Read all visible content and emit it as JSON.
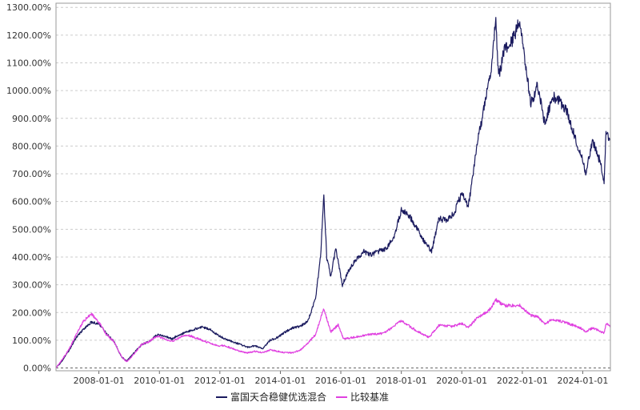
{
  "chart_data": {
    "type": "line",
    "title": "",
    "xlabel": "",
    "ylabel": "",
    "x_range": [
      "2006-08-01",
      "2024-11-30"
    ],
    "ylim": [
      -10,
      1315
    ],
    "y_unit": "%",
    "y_ticks": [
      0,
      100,
      200,
      300,
      400,
      500,
      600,
      700,
      800,
      900,
      1000,
      1100,
      1200,
      1300
    ],
    "y_tick_labels": [
      "0.00%",
      "100.00%",
      "200.00%",
      "300.00%",
      "400.00%",
      "500.00%",
      "600.00%",
      "700.00%",
      "800.00%",
      "900.00%",
      "1000.00%",
      "1100.00%",
      "1200.00%",
      "1300.00%"
    ],
    "x_ticks": [
      "2008-01-01",
      "2010-01-01",
      "2012-01-01",
      "2014-01-01",
      "2016-01-01",
      "2018-01-01",
      "2020-01-01",
      "2022-01-01",
      "2024-01-01"
    ],
    "grid": "horizontal dashed",
    "legend_position": "bottom-center",
    "series": [
      {
        "name": "富国天合稳健优选混合",
        "color": "#1a1a5e",
        "points": [
          [
            "2006-08-01",
            0
          ],
          [
            "2006-10-01",
            20
          ],
          [
            "2007-01-01",
            60
          ],
          [
            "2007-04-01",
            110
          ],
          [
            "2007-07-01",
            140
          ],
          [
            "2007-10-01",
            165
          ],
          [
            "2008-01-01",
            160
          ],
          [
            "2008-04-01",
            125
          ],
          [
            "2008-07-01",
            95
          ],
          [
            "2008-10-01",
            40
          ],
          [
            "2008-12-01",
            25
          ],
          [
            "2009-03-01",
            55
          ],
          [
            "2009-06-01",
            85
          ],
          [
            "2009-09-01",
            95
          ],
          [
            "2009-12-01",
            120
          ],
          [
            "2010-03-01",
            115
          ],
          [
            "2010-06-01",
            105
          ],
          [
            "2010-09-01",
            120
          ],
          [
            "2010-12-01",
            130
          ],
          [
            "2011-03-01",
            140
          ],
          [
            "2011-06-01",
            148
          ],
          [
            "2011-09-01",
            140
          ],
          [
            "2011-12-01",
            120
          ],
          [
            "2012-03-01",
            105
          ],
          [
            "2012-06-01",
            95
          ],
          [
            "2012-09-01",
            85
          ],
          [
            "2012-12-01",
            75
          ],
          [
            "2013-03-01",
            80
          ],
          [
            "2013-06-01",
            70
          ],
          [
            "2013-09-01",
            100
          ],
          [
            "2013-12-01",
            110
          ],
          [
            "2014-03-01",
            130
          ],
          [
            "2014-06-01",
            145
          ],
          [
            "2014-09-01",
            150
          ],
          [
            "2014-12-01",
            170
          ],
          [
            "2015-03-01",
            250
          ],
          [
            "2015-05-01",
            400
          ],
          [
            "2015-06-10",
            620
          ],
          [
            "2015-07-15",
            400
          ],
          [
            "2015-09-01",
            330
          ],
          [
            "2015-11-01",
            430
          ],
          [
            "2016-01-20",
            300
          ],
          [
            "2016-04-01",
            350
          ],
          [
            "2016-07-01",
            390
          ],
          [
            "2016-10-01",
            420
          ],
          [
            "2017-01-01",
            410
          ],
          [
            "2017-04-01",
            420
          ],
          [
            "2017-07-01",
            430
          ],
          [
            "2017-10-01",
            470
          ],
          [
            "2018-01-01",
            570
          ],
          [
            "2018-04-01",
            550
          ],
          [
            "2018-07-01",
            510
          ],
          [
            "2018-10-01",
            460
          ],
          [
            "2019-01-01",
            420
          ],
          [
            "2019-04-01",
            540
          ],
          [
            "2019-07-01",
            530
          ],
          [
            "2019-10-01",
            560
          ],
          [
            "2020-01-01",
            630
          ],
          [
            "2020-03-20",
            580
          ],
          [
            "2020-07-01",
            800
          ],
          [
            "2020-10-01",
            950
          ],
          [
            "2021-01-01",
            1100
          ],
          [
            "2021-02-15",
            1260
          ],
          [
            "2021-03-20",
            1050
          ],
          [
            "2021-06-01",
            1150
          ],
          [
            "2021-09-01",
            1180
          ],
          [
            "2021-12-01",
            1250
          ],
          [
            "2022-04-15",
            950
          ],
          [
            "2022-07-01",
            1020
          ],
          [
            "2022-10-01",
            880
          ],
          [
            "2023-01-01",
            980
          ],
          [
            "2023-04-01",
            960
          ],
          [
            "2023-07-01",
            920
          ],
          [
            "2023-10-01",
            830
          ],
          [
            "2024-01-01",
            750
          ],
          [
            "2024-02-05",
            700
          ],
          [
            "2024-05-01",
            820
          ],
          [
            "2024-08-01",
            740
          ],
          [
            "2024-09-15",
            665
          ],
          [
            "2024-10-08",
            850
          ],
          [
            "2024-11-30",
            820
          ]
        ]
      },
      {
        "name": "比较基准",
        "color": "#e040e0",
        "points": [
          [
            "2006-08-01",
            0
          ],
          [
            "2006-10-01",
            25
          ],
          [
            "2007-01-01",
            65
          ],
          [
            "2007-04-01",
            120
          ],
          [
            "2007-07-01",
            170
          ],
          [
            "2007-10-01",
            195
          ],
          [
            "2008-01-01",
            165
          ],
          [
            "2008-04-01",
            120
          ],
          [
            "2008-07-01",
            95
          ],
          [
            "2008-10-01",
            40
          ],
          [
            "2008-12-01",
            22
          ],
          [
            "2009-03-01",
            50
          ],
          [
            "2009-06-01",
            85
          ],
          [
            "2009-09-01",
            95
          ],
          [
            "2009-12-01",
            115
          ],
          [
            "2010-03-01",
            105
          ],
          [
            "2010-06-01",
            95
          ],
          [
            "2010-09-01",
            110
          ],
          [
            "2010-12-01",
            120
          ],
          [
            "2011-03-01",
            110
          ],
          [
            "2011-06-01",
            100
          ],
          [
            "2011-09-01",
            90
          ],
          [
            "2011-12-01",
            80
          ],
          [
            "2012-03-01",
            80
          ],
          [
            "2012-06-01",
            70
          ],
          [
            "2012-09-01",
            60
          ],
          [
            "2012-12-01",
            55
          ],
          [
            "2013-03-01",
            60
          ],
          [
            "2013-06-01",
            55
          ],
          [
            "2013-09-01",
            65
          ],
          [
            "2013-12-01",
            60
          ],
          [
            "2014-03-01",
            55
          ],
          [
            "2014-06-01",
            55
          ],
          [
            "2014-09-01",
            65
          ],
          [
            "2014-12-01",
            90
          ],
          [
            "2015-03-01",
            120
          ],
          [
            "2015-06-10",
            215
          ],
          [
            "2015-09-01",
            130
          ],
          [
            "2015-12-01",
            155
          ],
          [
            "2016-02-01",
            105
          ],
          [
            "2016-06-01",
            110
          ],
          [
            "2016-12-01",
            120
          ],
          [
            "2017-06-01",
            125
          ],
          [
            "2018-01-01",
            170
          ],
          [
            "2018-06-01",
            140
          ],
          [
            "2018-12-01",
            110
          ],
          [
            "2019-04-01",
            155
          ],
          [
            "2019-09-01",
            150
          ],
          [
            "2020-01-01",
            160
          ],
          [
            "2020-03-20",
            145
          ],
          [
            "2020-07-01",
            180
          ],
          [
            "2020-12-01",
            210
          ],
          [
            "2021-02-15",
            245
          ],
          [
            "2021-06-01",
            225
          ],
          [
            "2021-12-01",
            225
          ],
          [
            "2022-04-15",
            190
          ],
          [
            "2022-07-01",
            185
          ],
          [
            "2022-10-01",
            160
          ],
          [
            "2023-01-01",
            175
          ],
          [
            "2023-06-01",
            165
          ],
          [
            "2023-12-01",
            145
          ],
          [
            "2024-02-05",
            130
          ],
          [
            "2024-05-01",
            145
          ],
          [
            "2024-09-15",
            125
          ],
          [
            "2024-10-08",
            160
          ],
          [
            "2024-11-30",
            150
          ]
        ]
      }
    ]
  }
}
